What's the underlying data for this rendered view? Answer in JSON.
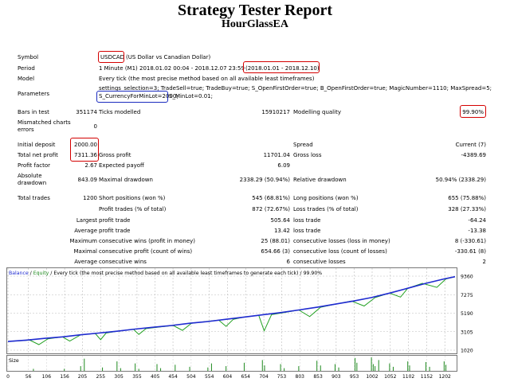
{
  "report": {
    "title": "Strategy Tester Report",
    "ea_name": "HourGlassEA"
  },
  "info": {
    "symbol_label": "Symbol",
    "symbol_code": "USDCAD",
    "symbol_desc": "(US Dollar vs Canadian Dollar)",
    "period_label": "Period",
    "period_value": "1 Minute (M1) 2018.01.02 00:04 - 2018.12.07 23:59",
    "period_range": "(2018.01.01 - 2018.12.10)",
    "model_label": "Model",
    "model_value": "Every tick (the most precise method based on all available least timeframes)",
    "params_label": "Parameters",
    "params_line1": "settings_selection=3; TradeSell=true; TradeBuy=true; S_OpenFirstOrder=true; B_OpenFirstOrder=true; MagicNumber=1110; MaxSpread=5;",
    "params_currency": "S_CurrencyForMinLot=2000;",
    "params_minlot": "S_MinLot=0.01;"
  },
  "bars": {
    "bars_label": "Bars in test",
    "bars_value": "351174",
    "ticks_label": "Ticks modelled",
    "ticks_value": "15910217",
    "quality_label": "Modelling quality",
    "quality_value": "99.90%",
    "mismatch_label_1": "Mismatched charts",
    "mismatch_label_2": "errors",
    "mismatch_value": "0"
  },
  "results": {
    "initial_deposit_label": "Initial deposit",
    "initial_deposit": "2000.00",
    "spread_label": "Spread",
    "spread_value": "Current (7)",
    "net_profit_label": "Total net profit",
    "net_profit": "7311.36",
    "gross_profit_label": "Gross profit",
    "gross_profit": "11701.04",
    "gross_loss_label": "Gross loss",
    "gross_loss": "-4389.69",
    "profit_factor_label": "Profit factor",
    "profit_factor": "2.67",
    "expected_payoff_label": "Expected payoff",
    "expected_payoff": "6.09",
    "abs_dd_label_1": "Absolute",
    "abs_dd_label_2": "drawdown",
    "abs_dd": "843.09",
    "max_dd_label": "Maximal drawdown",
    "max_dd": "2338.29 (50.94%)",
    "rel_dd_label": "Relative drawdown",
    "rel_dd": "50.94% (2338.29)"
  },
  "trades": {
    "total_label": "Total trades",
    "total": "1200",
    "short_label": "Short positions (won %)",
    "short": "545 (68.81%)",
    "long_label": "Long positions (won %)",
    "long": "655 (75.88%)",
    "profit_trades_label": "Profit trades (% of total)",
    "profit_trades": "872 (72.67%)",
    "loss_trades_label": "Loss trades (% of total)",
    "loss_trades": "328 (27.33%)",
    "largest": "Largest",
    "average": "Average",
    "maximum": "Maximum",
    "maximal": "Maximal",
    "profit_trade_label": "profit trade",
    "loss_trade_label": "loss trade",
    "largest_profit": "505.64",
    "largest_loss": "-64.24",
    "average_profit": "13.42",
    "average_loss": "-13.38",
    "max_cons_wins_label": "consecutive wins (profit in money)",
    "max_cons_wins": "25 (88.01)",
    "max_cons_losses_label": "consecutive losses (loss in money)",
    "max_cons_losses": "8 (-330.61)",
    "maximal_cons_profit_label": "consecutive profit (count of wins)",
    "maximal_cons_profit": "654.66 (3)",
    "maximal_cons_loss_label": "consecutive loss (count of losses)",
    "maximal_cons_loss": "-330.61 (8)",
    "avg_cons_wins_label": "consecutive wins",
    "avg_cons_wins": "6",
    "avg_cons_losses_label": "consecutive losses",
    "avg_cons_losses": "2"
  },
  "chart_data": {
    "type": "line",
    "legend": {
      "balance": "Balance",
      "sep1": " / ",
      "equity": "Equity",
      "sep2": " / ",
      "desc": "Every tick (the most precise method based on all available least timeframes to generate each tick)",
      "sep3": " / ",
      "quality": "99.90%"
    },
    "ylim": [
      1020,
      9360
    ],
    "yticks": [
      "9360",
      "7275",
      "5190",
      "3105",
      "1020"
    ],
    "xlim": [
      0,
      1230
    ],
    "xticks": [
      "0",
      "56",
      "106",
      "156",
      "205",
      "255",
      "305",
      "355",
      "405",
      "454",
      "504",
      "554",
      "604",
      "654",
      "704",
      "753",
      "803",
      "853",
      "903",
      "953",
      "1002",
      "1052",
      "1102",
      "1152",
      "1202"
    ],
    "balance": {
      "x": [
        0,
        50,
        100,
        150,
        200,
        250,
        300,
        350,
        400,
        450,
        500,
        550,
        600,
        650,
        700,
        750,
        800,
        850,
        900,
        950,
        1000,
        1050,
        1100,
        1150,
        1200,
        1230
      ],
      "y": [
        2000,
        2150,
        2350,
        2520,
        2750,
        2950,
        3150,
        3400,
        3600,
        3800,
        4050,
        4250,
        4500,
        4750,
        5000,
        5250,
        5550,
        5850,
        6200,
        6550,
        6950,
        7450,
        8000,
        8550,
        9050,
        9300
      ]
    },
    "equity": {
      "x": [
        0,
        60,
        85,
        110,
        150,
        170,
        200,
        240,
        255,
        270,
        300,
        345,
        360,
        380,
        410,
        455,
        480,
        505,
        545,
        580,
        600,
        620,
        650,
        690,
        705,
        725,
        760,
        800,
        830,
        860,
        900,
        945,
        980,
        1010,
        1050,
        1080,
        1100,
        1140,
        1180,
        1205,
        1230
      ],
      "y": [
        2000,
        2150,
        1650,
        2300,
        2520,
        2050,
        2750,
        2900,
        2200,
        2950,
        3150,
        3380,
        2800,
        3450,
        3600,
        3800,
        3250,
        4050,
        4250,
        4400,
        3700,
        4500,
        4750,
        4950,
        3200,
        5020,
        5250,
        5550,
        4800,
        5850,
        6200,
        6550,
        6000,
        6950,
        7450,
        7000,
        8000,
        8550,
        8100,
        9050,
        9300
      ]
    },
    "size_label": "Size",
    "size": {
      "x": [
        70,
        155,
        200,
        210,
        260,
        300,
        310,
        350,
        360,
        410,
        420,
        460,
        500,
        550,
        560,
        600,
        650,
        700,
        706,
        750,
        760,
        800,
        850,
        860,
        900,
        910,
        955,
        960,
        1000,
        1005,
        1010,
        1020,
        1050,
        1060,
        1100,
        1105,
        1150,
        1160,
        1200,
        1205
      ],
      "y": [
        0.15,
        0.15,
        0.35,
        0.9,
        0.25,
        0.7,
        0.2,
        0.55,
        0.15,
        0.5,
        0.2,
        0.45,
        0.3,
        0.25,
        0.55,
        0.35,
        0.6,
        0.8,
        0.4,
        0.5,
        0.2,
        0.35,
        0.75,
        0.4,
        0.5,
        0.25,
        0.95,
        0.6,
        1.0,
        0.5,
        0.35,
        0.8,
        0.55,
        0.3,
        0.7,
        0.4,
        0.65,
        0.3,
        0.7,
        0.45
      ]
    }
  }
}
